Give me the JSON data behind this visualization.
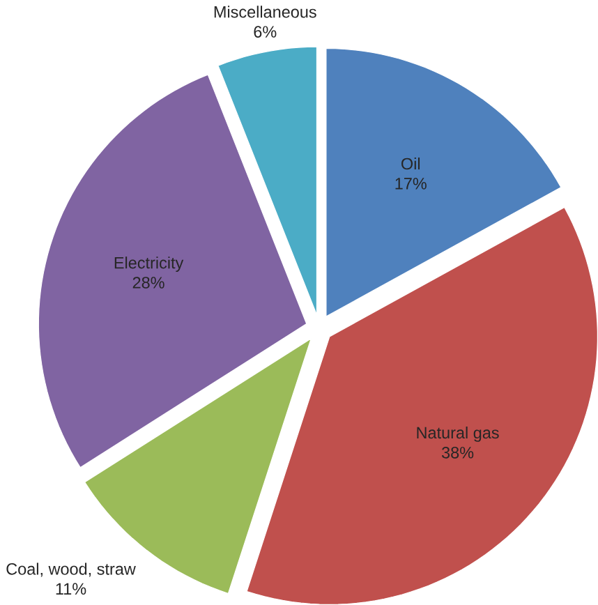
{
  "chart_data": {
    "type": "pie",
    "categories": [
      "Oil",
      "Natural gas",
      "Coal, wood, straw",
      "Electricity",
      "Miscellaneous"
    ],
    "values": [
      17,
      38,
      11,
      28,
      6
    ],
    "colors": [
      "#4f81bd",
      "#c0504d",
      "#9bbb59",
      "#8064a2",
      "#4bacc6"
    ],
    "value_labels": [
      "17%",
      "38%",
      "11%",
      "28%",
      "6%"
    ]
  }
}
